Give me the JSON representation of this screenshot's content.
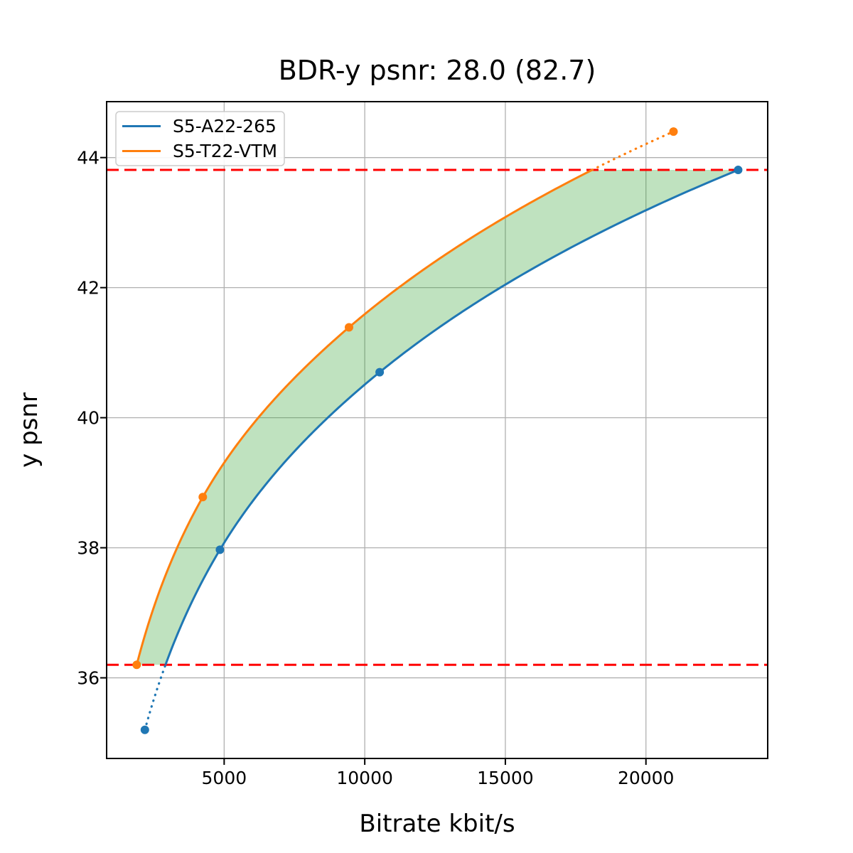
{
  "chart_data": {
    "type": "line",
    "title": "BDR-y psnr: 28.0 (82.7)",
    "xlabel": "Bitrate kbit/s",
    "ylabel": "y psnr",
    "xlim": [
      820,
      24330
    ],
    "ylim": [
      34.76,
      44.86
    ],
    "xticks": [
      5000,
      10000,
      15000,
      20000
    ],
    "xtick_labels": [
      "5000",
      "10000",
      "15000",
      "20000"
    ],
    "yticks": [
      36,
      38,
      40,
      42,
      44
    ],
    "ytick_labels": [
      "36",
      "38",
      "40",
      "42",
      "44"
    ],
    "grid": true,
    "grid_color": "#b0b0b0",
    "legend_position": "upper-left",
    "series": [
      {
        "name": "S5-A22-265",
        "color": "#1f77b4",
        "x": [
          2180,
          4850,
          10530,
          23280
        ],
        "y": [
          35.2,
          37.97,
          40.7,
          43.81
        ],
        "dotted_tail": "start"
      },
      {
        "name": "S5-T22-VTM",
        "color": "#ff7f0e",
        "x": [
          1890,
          4240,
          9440,
          20980
        ],
        "y": [
          36.2,
          38.78,
          41.39,
          44.4
        ],
        "dotted_tail": "end"
      }
    ],
    "hlines": {
      "values": [
        36.2,
        43.81
      ],
      "color": "#ff0000",
      "style": "dashed"
    },
    "fill_between": {
      "color": "#2ca02c",
      "opacity": 0.3,
      "y_range": [
        36.2,
        43.81
      ]
    }
  }
}
